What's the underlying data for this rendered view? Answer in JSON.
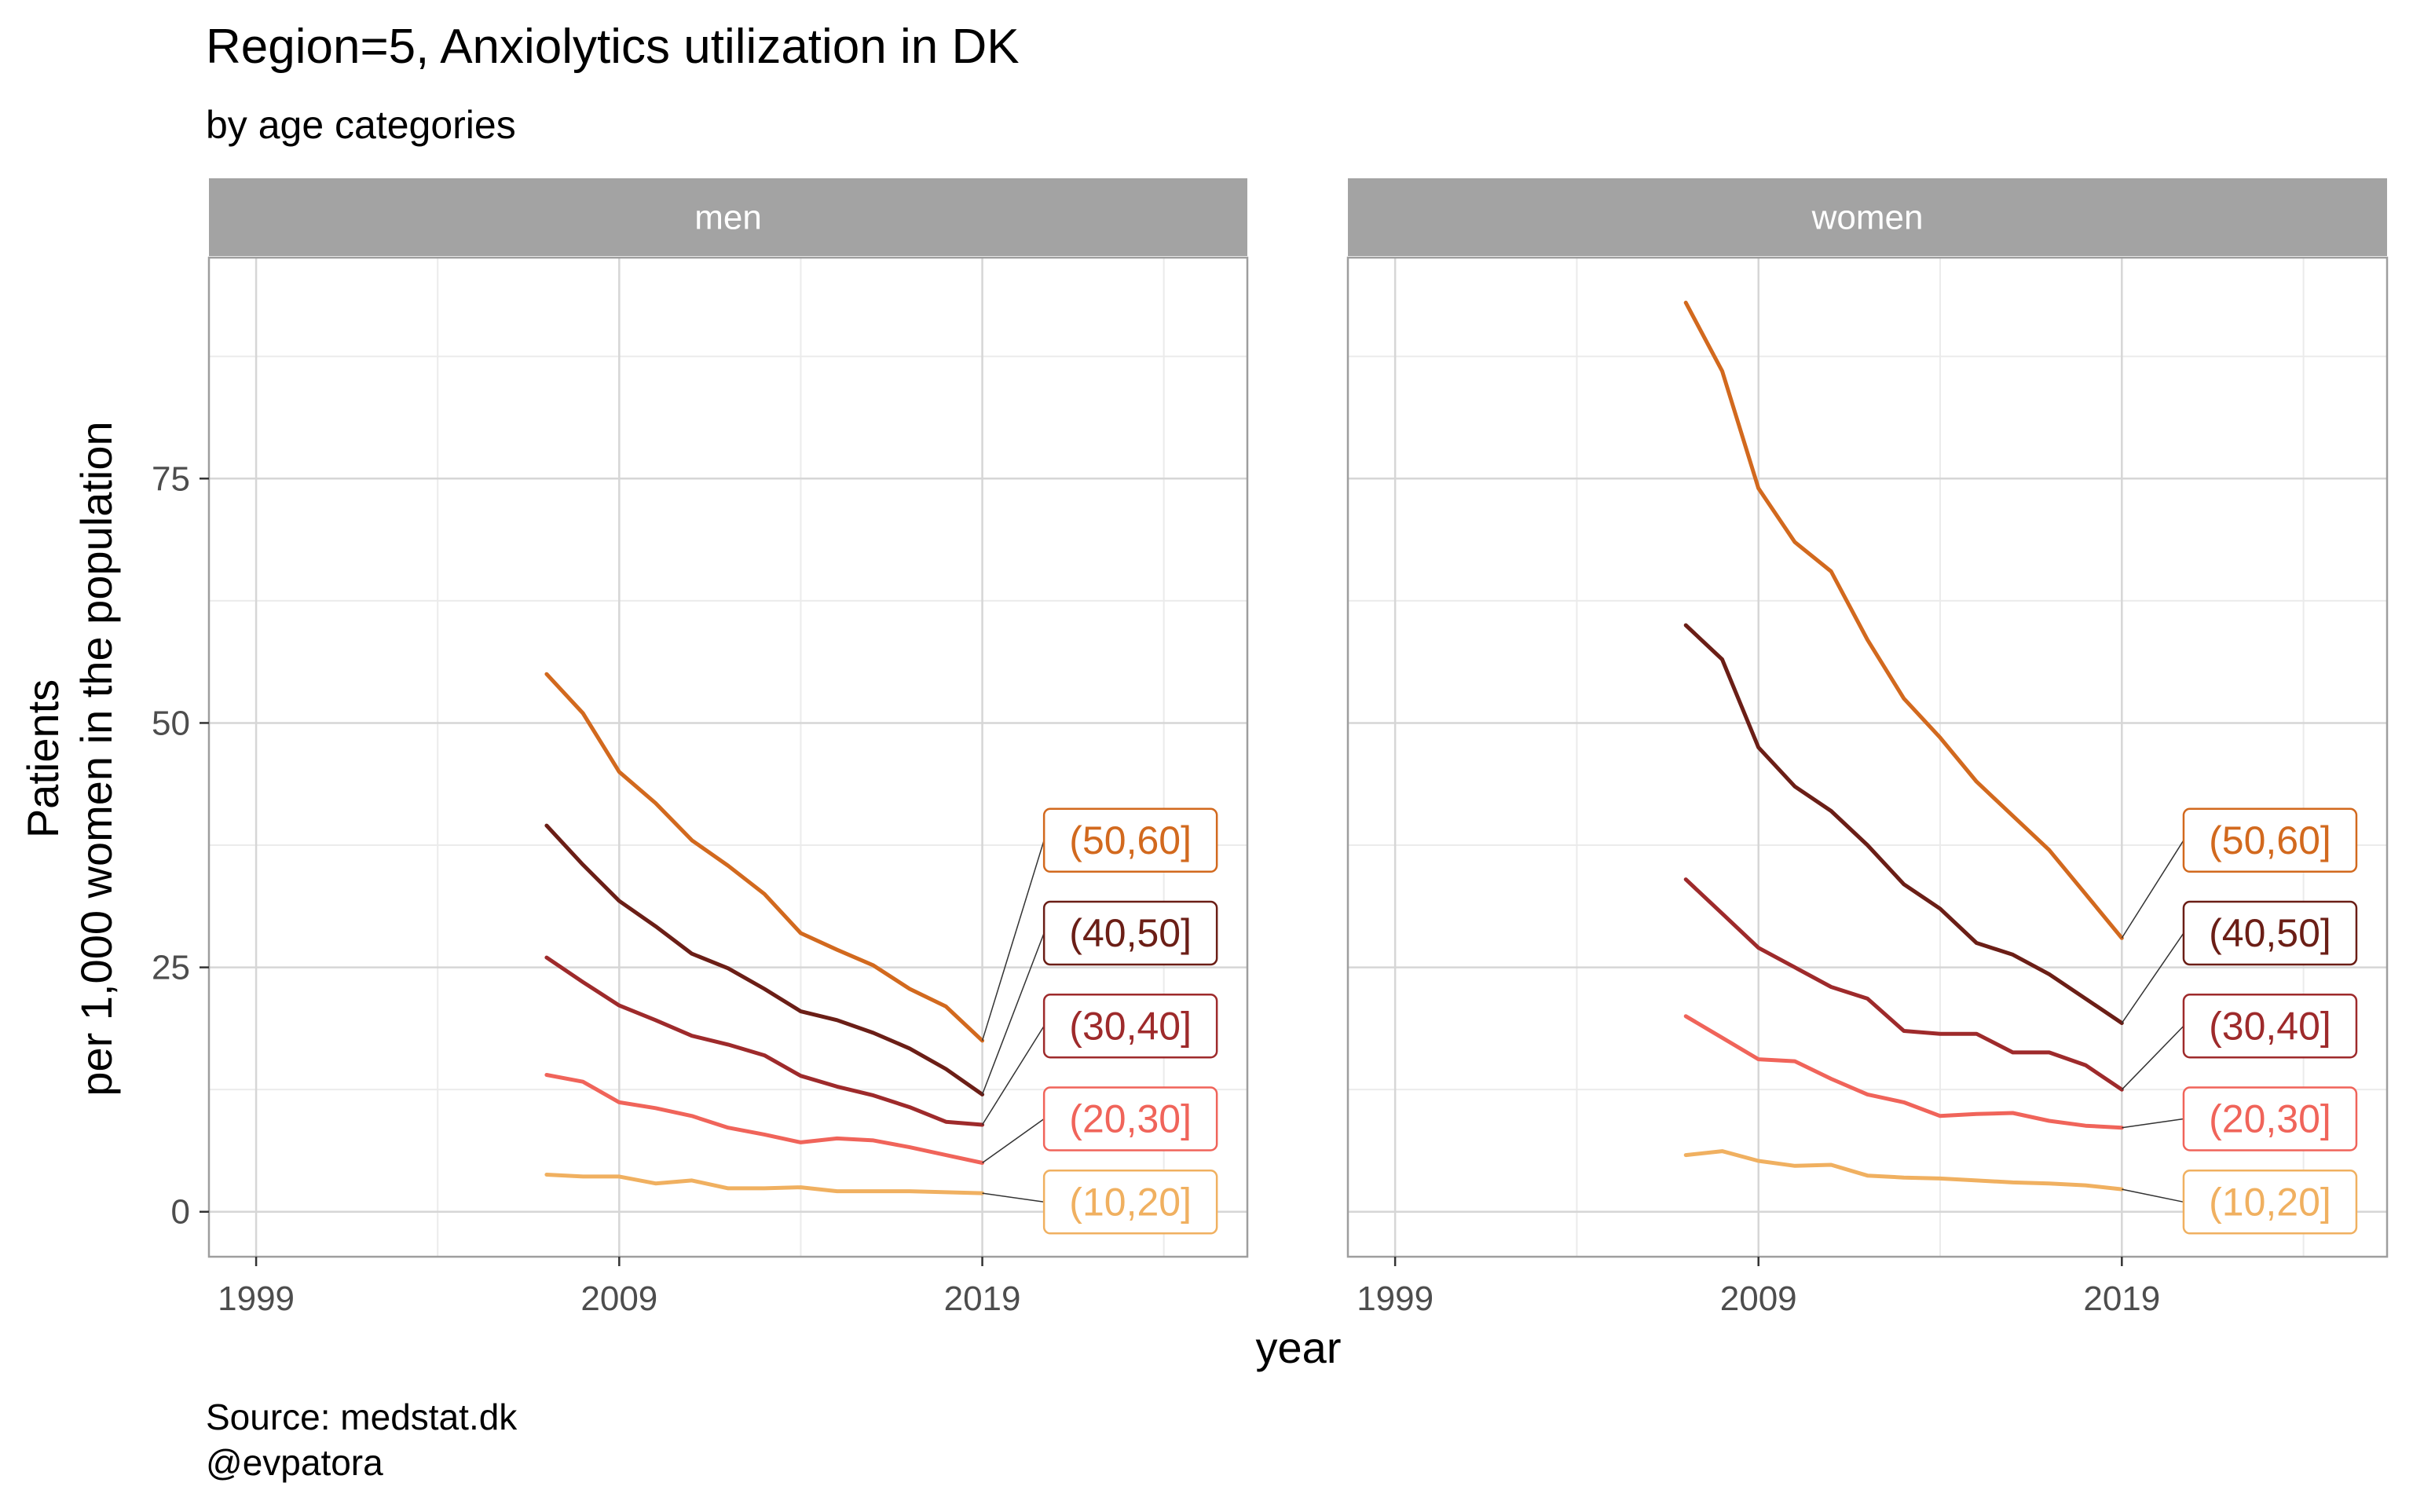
{
  "chart_data": {
    "type": "line",
    "title": "Region=5, Anxiolytics utilization in DK",
    "subtitle": "by age categories",
    "xlabel": "year",
    "ylabel_line1": "Patients",
    "ylabel_line2": "per 1,000 women in the population",
    "caption_line1": "Source: medstat.dk",
    "caption_line2": "@evpatora",
    "xlim": [
      1997.7,
      2026.3
    ],
    "ylim": [
      -4.6,
      97.6
    ],
    "x_ticks": [
      1999,
      2009,
      2019
    ],
    "y_ticks": [
      0,
      25,
      50,
      75
    ],
    "grid": true,
    "legend": "direct labels at line ends",
    "x": [
      2007,
      2008,
      2009,
      2010,
      2011,
      2012,
      2013,
      2014,
      2015,
      2016,
      2017,
      2018,
      2019
    ],
    "panels": [
      {
        "label": "men",
        "series": [
          {
            "name": "(50,60]",
            "color": "#D2691E",
            "values": [
              55.0,
              51.0,
              45.0,
              41.8,
              38.0,
              35.4,
              32.5,
              28.5,
              26.8,
              25.2,
              22.8,
              21.0,
              17.5
            ]
          },
          {
            "name": "(40,50]",
            "color": "#6B1E16",
            "values": [
              39.5,
              35.5,
              31.8,
              29.2,
              26.4,
              24.9,
              22.8,
              20.5,
              19.6,
              18.3,
              16.7,
              14.6,
              12.0
            ]
          },
          {
            "name": "(30,40]",
            "color": "#9E2A2B",
            "values": [
              26.0,
              23.5,
              21.1,
              19.6,
              18.0,
              17.1,
              16.0,
              13.9,
              12.8,
              11.9,
              10.7,
              9.2,
              8.9
            ]
          },
          {
            "name": "(20,30]",
            "color": "#F0645A",
            "values": [
              14.0,
              13.3,
              11.2,
              10.6,
              9.8,
              8.6,
              7.9,
              7.1,
              7.5,
              7.3,
              6.6,
              5.8,
              5.0
            ]
          },
          {
            "name": "(10,20]",
            "color": "#F0B060",
            "values": [
              3.8,
              3.6,
              3.6,
              2.9,
              3.2,
              2.4,
              2.4,
              2.5,
              2.1,
              2.1,
              2.1,
              2.0,
              1.9
            ]
          }
        ]
      },
      {
        "label": "women",
        "series": [
          {
            "name": "(50,60]",
            "color": "#D2691E",
            "values": [
              93.0,
              86.0,
              74.0,
              68.5,
              65.5,
              58.5,
              52.5,
              48.5,
              44.0,
              40.5,
              37.0,
              32.5,
              28.0
            ]
          },
          {
            "name": "(40,50]",
            "color": "#6B1E16",
            "values": [
              60.0,
              56.5,
              47.5,
              43.5,
              41.0,
              37.5,
              33.5,
              31.0,
              27.5,
              26.3,
              24.3,
              21.8,
              19.3
            ]
          },
          {
            "name": "(30,40]",
            "color": "#9E2A2B",
            "values": [
              34.0,
              30.5,
              27.0,
              25.0,
              23.0,
              21.8,
              18.5,
              18.2,
              18.2,
              16.3,
              16.3,
              15.0,
              12.5
            ]
          },
          {
            "name": "(20,30]",
            "color": "#F0645A",
            "values": [
              20.0,
              17.8,
              15.6,
              15.4,
              13.6,
              12.0,
              11.2,
              9.8,
              10.0,
              10.1,
              9.3,
              8.8,
              8.6
            ]
          },
          {
            "name": "(10,20]",
            "color": "#F0B060",
            "values": [
              5.8,
              6.2,
              5.2,
              4.7,
              4.8,
              3.7,
              3.5,
              3.4,
              3.2,
              3.0,
              2.9,
              2.7,
              2.3
            ]
          }
        ]
      }
    ]
  }
}
